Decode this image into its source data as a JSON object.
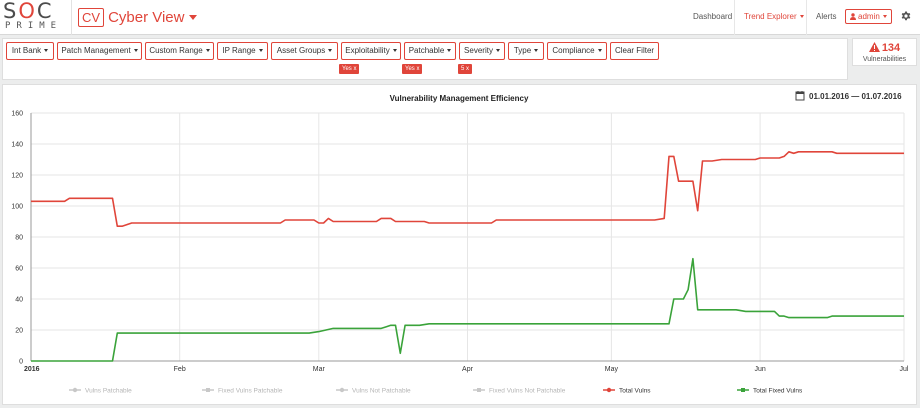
{
  "logo": {
    "main_left": "S",
    "main_o": "O",
    "main_right": "C",
    "sub": "PRIME"
  },
  "brand": {
    "badge": "CV",
    "name": "Cyber View"
  },
  "nav": {
    "dashboard": "Dashboard",
    "trend_explorer": "Trend Explorer",
    "alerts": "Alerts",
    "user": "admin"
  },
  "filters": [
    {
      "label": "Int Bank"
    },
    {
      "label": "Patch Management"
    },
    {
      "label": "Custom Range"
    },
    {
      "label": "IP Range"
    },
    {
      "label": "Asset Groups"
    },
    {
      "label": "Exploitability"
    },
    {
      "label": "Patchable"
    },
    {
      "label": "Severity"
    },
    {
      "label": "Type"
    },
    {
      "label": "Compliance"
    }
  ],
  "clear_filter": "Clear Filter",
  "active_chips": [
    "Yes x",
    "Yes x",
    "5 x"
  ],
  "vulnerabilities": {
    "count": "134",
    "label": "Vulnerabilities"
  },
  "date_range": "01.01.2016 — 01.07.2016",
  "chart_data": {
    "type": "line",
    "title": "Vulnerability Management Efficiency",
    "ylim": [
      0,
      160
    ],
    "yticks": [
      0,
      20,
      40,
      60,
      80,
      100,
      120,
      140,
      160
    ],
    "xlim": [
      "2016-01-01",
      "2016-07-01"
    ],
    "xtick_labels": [
      "2016",
      "Feb",
      "Mar",
      "Apr",
      "May",
      "Jun",
      "Jul"
    ],
    "xtick_dates": [
      "2016-01-01",
      "2016-02-01",
      "2016-03-01",
      "2016-04-01",
      "2016-05-01",
      "2016-06-01",
      "2016-07-01"
    ],
    "grid": true,
    "legend_position": "bottom",
    "series": [
      {
        "name": "Vulns Patchable",
        "color": "#cccccc",
        "visible": false,
        "points": []
      },
      {
        "name": "Fixed Vulns Patchable",
        "color": "#cccccc",
        "visible": false,
        "points": []
      },
      {
        "name": "Vulns Not Patchable",
        "color": "#cccccc",
        "visible": false,
        "points": []
      },
      {
        "name": "Fixed Vulns Not Patchable",
        "color": "#cccccc",
        "visible": false,
        "points": []
      },
      {
        "name": "Total Vulns",
        "color": "#e0453a",
        "visible": true,
        "points": [
          [
            "2016-01-01",
            103
          ],
          [
            "2016-01-08",
            103
          ],
          [
            "2016-01-09",
            105
          ],
          [
            "2016-01-13",
            105
          ],
          [
            "2016-01-18",
            105
          ],
          [
            "2016-01-19",
            87
          ],
          [
            "2016-01-20",
            87
          ],
          [
            "2016-01-21",
            88
          ],
          [
            "2016-01-22",
            89
          ],
          [
            "2016-02-15",
            89
          ],
          [
            "2016-02-22",
            89
          ],
          [
            "2016-02-23",
            91
          ],
          [
            "2016-02-29",
            91
          ],
          [
            "2016-03-01",
            89
          ],
          [
            "2016-03-02",
            89
          ],
          [
            "2016-03-03",
            92
          ],
          [
            "2016-03-04",
            90
          ],
          [
            "2016-03-13",
            90
          ],
          [
            "2016-03-14",
            92
          ],
          [
            "2016-03-16",
            92
          ],
          [
            "2016-03-17",
            90
          ],
          [
            "2016-03-23",
            90
          ],
          [
            "2016-03-24",
            89
          ],
          [
            "2016-04-04",
            89
          ],
          [
            "2016-04-06",
            89
          ],
          [
            "2016-04-07",
            91
          ],
          [
            "2016-05-10",
            91
          ],
          [
            "2016-05-12",
            92
          ],
          [
            "2016-05-13",
            132
          ],
          [
            "2016-05-14",
            132
          ],
          [
            "2016-05-15",
            116
          ],
          [
            "2016-05-18",
            116
          ],
          [
            "2016-05-19",
            97
          ],
          [
            "2016-05-20",
            129
          ],
          [
            "2016-05-22",
            129
          ],
          [
            "2016-05-24",
            130
          ],
          [
            "2016-05-31",
            130
          ],
          [
            "2016-06-01",
            131
          ],
          [
            "2016-06-05",
            131
          ],
          [
            "2016-06-06",
            132
          ],
          [
            "2016-06-07",
            135
          ],
          [
            "2016-06-08",
            134
          ],
          [
            "2016-06-09",
            135
          ],
          [
            "2016-06-16",
            135
          ],
          [
            "2016-06-17",
            134
          ],
          [
            "2016-07-01",
            134
          ]
        ]
      },
      {
        "name": "Total Fixed Vulns",
        "color": "#3aa33a",
        "visible": true,
        "points": [
          [
            "2016-01-01",
            0
          ],
          [
            "2016-01-18",
            0
          ],
          [
            "2016-01-19",
            18
          ],
          [
            "2016-02-28",
            18
          ],
          [
            "2016-03-01",
            19
          ],
          [
            "2016-03-04",
            21
          ],
          [
            "2016-03-14",
            21
          ],
          [
            "2016-03-15",
            22
          ],
          [
            "2016-03-16",
            23
          ],
          [
            "2016-03-17",
            23
          ],
          [
            "2016-03-18",
            5
          ],
          [
            "2016-03-19",
            23
          ],
          [
            "2016-03-22",
            23
          ],
          [
            "2016-03-24",
            24
          ],
          [
            "2016-05-13",
            24
          ],
          [
            "2016-05-14",
            40
          ],
          [
            "2016-05-16",
            40
          ],
          [
            "2016-05-17",
            46
          ],
          [
            "2016-05-18",
            66
          ],
          [
            "2016-05-19",
            33
          ],
          [
            "2016-05-27",
            33
          ],
          [
            "2016-05-29",
            32
          ],
          [
            "2016-06-04",
            32
          ],
          [
            "2016-06-05",
            29
          ],
          [
            "2016-06-06",
            29
          ],
          [
            "2016-06-07",
            28
          ],
          [
            "2016-06-15",
            28
          ],
          [
            "2016-06-16",
            29
          ],
          [
            "2016-07-01",
            29
          ]
        ]
      }
    ]
  }
}
